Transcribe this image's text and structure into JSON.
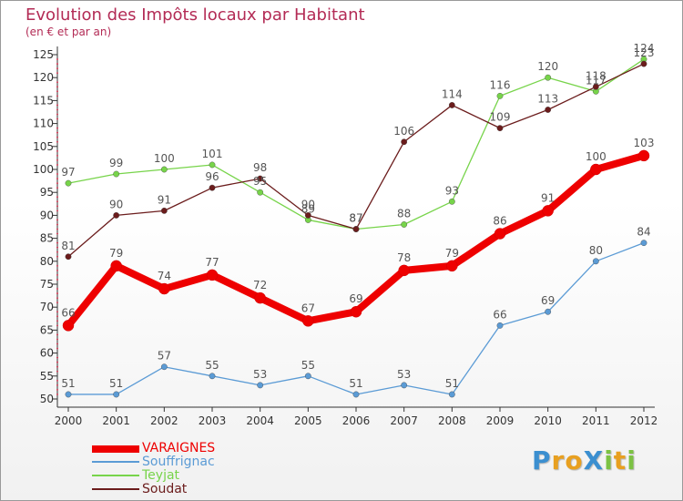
{
  "header": {
    "title": "Evolution des Impôts locaux par Habitant",
    "subtitle": "(en € et par an)"
  },
  "chart_data": {
    "type": "line",
    "title": "Evolution des Impôts locaux par Habitant",
    "subtitle": "(en € et par an)",
    "xlabel": "",
    "ylabel": "",
    "categories": [
      "2000",
      "2001",
      "2002",
      "2003",
      "2004",
      "2005",
      "2006",
      "2007",
      "2008",
      "2009",
      "2010",
      "2011",
      "2012"
    ],
    "ylim": [
      50,
      125
    ],
    "yticks": [
      50,
      55,
      60,
      65,
      70,
      75,
      80,
      85,
      90,
      95,
      100,
      105,
      110,
      115,
      120,
      125
    ],
    "grid": false,
    "legend_position": "bottom-left",
    "series": [
      {
        "name": "VARAIGNES",
        "color": "#ee0000",
        "emphasis": true,
        "values": [
          66,
          79,
          74,
          77,
          72,
          67,
          69,
          78,
          79,
          86,
          91,
          100,
          103
        ]
      },
      {
        "name": "Souffrignac",
        "color": "#5b9bd5",
        "emphasis": false,
        "values": [
          51,
          51,
          57,
          55,
          53,
          55,
          51,
          53,
          51,
          66,
          69,
          80,
          84
        ]
      },
      {
        "name": "Teyjat",
        "color": "#77d44a",
        "emphasis": false,
        "values": [
          97,
          99,
          100,
          101,
          95,
          89,
          87,
          88,
          93,
          116,
          120,
          117,
          124
        ]
      },
      {
        "name": "Soudat",
        "color": "#6b1c1c",
        "emphasis": false,
        "values": [
          81,
          90,
          91,
          96,
          98,
          90,
          87,
          106,
          114,
          109,
          113,
          118,
          123
        ]
      }
    ]
  },
  "legend": {
    "items": [
      {
        "label": "VARAIGNES",
        "color": "#ee0000"
      },
      {
        "label": "Souffrignac",
        "color": "#5b9bd5"
      },
      {
        "label": "Teyjat",
        "color": "#77d44a"
      },
      {
        "label": "Soudat",
        "color": "#6b1c1c"
      }
    ]
  },
  "logo": {
    "text": "ProXiti",
    "letters": [
      {
        "ch": "P",
        "color": "#3b8fd0"
      },
      {
        "ch": "r",
        "color": "#e8a020"
      },
      {
        "ch": "o",
        "color": "#e8a020"
      },
      {
        "ch": "X",
        "color": "#3b8fd0"
      },
      {
        "ch": "i",
        "color": "#7cc243"
      },
      {
        "ch": "t",
        "color": "#e8a020"
      },
      {
        "ch": "i",
        "color": "#7cc243"
      }
    ]
  }
}
